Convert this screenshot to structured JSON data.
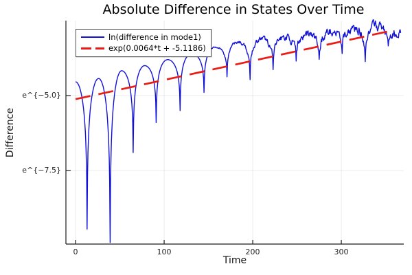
{
  "chart_data": {
    "type": "line",
    "title": "Absolute Difference in States Over Time",
    "xlabel": "Time",
    "ylabel": "Difference",
    "x_ticks": [
      {
        "t": 0,
        "label": "0"
      },
      {
        "t": 100,
        "label": "100"
      },
      {
        "t": 200,
        "label": "200"
      },
      {
        "t": 300,
        "label": "300"
      }
    ],
    "y_ticks": [
      {
        "ln": -5.0,
        "label": "e^{−5.0}"
      },
      {
        "ln": -7.5,
        "label": "e^{−7.5}"
      }
    ],
    "xlim": [
      -10.9,
      370.5
    ],
    "ylim_ln": [
      -9.95,
      -2.5
    ],
    "grid": true,
    "legend_position": "top-left",
    "colors": {
      "axis": "#1a1a1a",
      "grid": "rgba(0,0,0,0.08)",
      "background": "#ffffff"
    },
    "series": [
      {
        "name": "ln(difference in mode1)",
        "color": "#1111d8",
        "style": "solid",
        "width": 1.4,
        "peaks": [
          [
            0,
            -4.54
          ],
          [
            26,
            -4.43
          ],
          [
            52,
            -4.17
          ],
          [
            78,
            -4.0
          ],
          [
            104,
            -3.8
          ],
          [
            131,
            -3.6
          ],
          [
            158,
            -3.38
          ],
          [
            184,
            -3.22
          ],
          [
            210,
            -3.12
          ],
          [
            236,
            -3.05
          ],
          [
            262,
            -2.95
          ],
          [
            288,
            -2.85
          ],
          [
            314,
            -2.77
          ],
          [
            340,
            -2.68
          ],
          [
            367,
            -2.9
          ]
        ],
        "dips": [
          [
            13,
            -9.45
          ],
          [
            39,
            -9.9
          ],
          [
            65,
            -6.9
          ],
          [
            91,
            -5.9
          ],
          [
            118,
            -5.5
          ],
          [
            145,
            -4.9
          ],
          [
            171,
            -4.4
          ],
          [
            197,
            -4.45
          ],
          [
            223,
            -4.2
          ],
          [
            249,
            -3.95
          ],
          [
            275,
            -3.9
          ],
          [
            301,
            -3.7
          ],
          [
            327,
            -3.8
          ],
          [
            353,
            -3.5
          ]
        ],
        "noise": {
          "start_t": 135,
          "full_t": 265,
          "max_amp": 0.2
        }
      },
      {
        "name": "exp(0.0064*t + -5.1186)",
        "color": "#ea1c16",
        "style": "dashed",
        "width": 2.7,
        "dash": [
          22,
          12
        ],
        "slope": 0.0064,
        "intercept": -5.1186,
        "t_range": [
          0,
          353
        ]
      }
    ]
  }
}
